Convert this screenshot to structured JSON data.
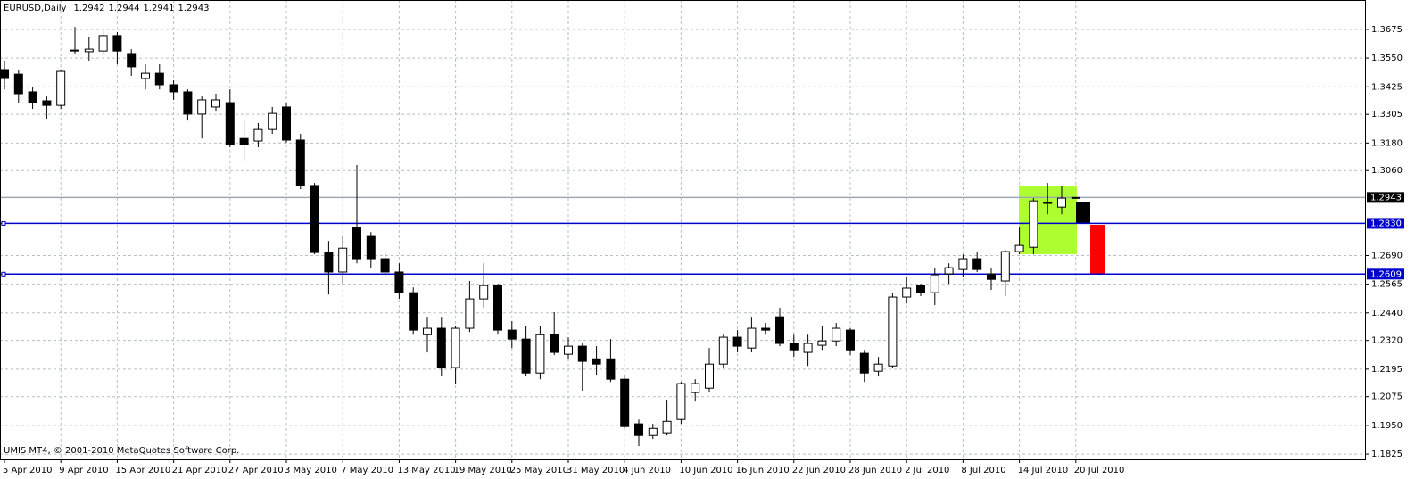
{
  "chart_data": {
    "type": "candlestick",
    "title": "EURUSD,Daily",
    "watermark": "UMIS MT4, © 2001-2010 MetaQuotes Software Corp.",
    "categories": [
      "5 Apr 2010",
      null,
      null,
      null,
      "9 Apr 2010",
      null,
      null,
      null,
      "15 Apr 2010",
      null,
      null,
      null,
      "21 Apr 2010",
      null,
      null,
      null,
      "27 Apr 2010",
      null,
      null,
      null,
      "3 May 2010",
      null,
      null,
      null,
      "7 May 2010",
      null,
      null,
      null,
      "13 May 2010",
      null,
      null,
      null,
      "19 May 2010",
      null,
      null,
      null,
      "25 May 2010",
      null,
      null,
      null,
      "31 May 2010",
      null,
      null,
      null,
      "4 Jun 2010",
      null,
      null,
      null,
      "10 Jun 2010",
      null,
      null,
      null,
      "16 Jun 2010",
      null,
      null,
      null,
      "22 Jun 2010",
      null,
      null,
      null,
      "28 Jun 2010",
      null,
      null,
      null,
      "2 Jul 2010",
      null,
      null,
      null,
      "8 Jul 2010",
      null,
      null,
      null,
      "14 Jul 2010",
      null,
      null,
      null,
      "20 Jul 2010"
    ],
    "open": [
      1.35,
      1.348,
      1.3403,
      1.3364,
      1.3344,
      1.3581,
      1.3578,
      1.3581,
      1.3648,
      1.357,
      1.3461,
      1.3484,
      1.3434,
      1.3403,
      1.3306,
      1.3337,
      1.3356,
      1.32,
      1.3189,
      1.3239,
      1.3337,
      1.3193,
      1.2995,
      1.2703,
      1.2618,
      1.2812,
      1.2773,
      1.2676,
      1.2618,
      1.2528,
      1.2345,
      1.2373,
      1.2202,
      1.2373,
      1.2501,
      1.2559,
      1.2365,
      1.2326,
      1.2178,
      1.2345,
      1.226,
      1.2295,
      1.224,
      1.224,
      1.2151,
      1.1957,
      1.1906,
      1.1918,
      1.1976,
      1.2093,
      1.2112,
      1.2217,
      1.2334,
      1.2287,
      1.2373,
      1.2423,
      1.2307,
      1.2268,
      1.2299,
      1.2318,
      1.2365,
      1.2264,
      1.2186,
      1.2209,
      1.2509,
      1.2559,
      1.2528,
      1.261,
      1.2629,
      1.2676,
      1.261,
      1.2579,
      1.2707,
      1.2726,
      1.2921,
      1.2901,
      1.2942
    ],
    "high": [
      1.3539,
      1.35,
      1.3422,
      1.3383,
      1.35,
      1.3686,
      1.364,
      1.3667,
      1.3663,
      1.3589,
      1.3523,
      1.3523,
      1.3453,
      1.3414,
      1.3383,
      1.3395,
      1.3414,
      1.3278,
      1.3267,
      1.3337,
      1.3356,
      1.322,
      1.3006,
      1.2753,
      1.2773,
      1.3084,
      1.2792,
      1.2707,
      1.2656,
      1.2551,
      1.2423,
      1.2423,
      1.2384,
      1.2579,
      1.2656,
      1.2567,
      1.2404,
      1.2384,
      1.2384,
      1.2443,
      1.2334,
      1.2307,
      1.2295,
      1.2326,
      1.2171,
      1.1976,
      1.1957,
      1.2062,
      1.2139,
      1.2151,
      1.2287,
      1.2345,
      1.2365,
      1.2423,
      1.2396,
      1.2462,
      1.2345,
      1.2345,
      1.2384,
      1.2396,
      1.2373,
      1.2279,
      1.2248,
      1.2528,
      1.2598,
      1.2567,
      1.2637,
      1.2656,
      1.2695,
      1.2707,
      1.2637,
      1.2715,
      1.2812,
      1.294,
      1.3006,
      1.2995,
      1.2944
    ],
    "low": [
      1.3414,
      1.3356,
      1.3329,
      1.3286,
      1.3329,
      1.357,
      1.3539,
      1.357,
      1.3523,
      1.3473,
      1.3414,
      1.3414,
      1.3368,
      1.3278,
      1.32,
      1.3317,
      1.3162,
      1.3103,
      1.3162,
      1.322,
      1.3181,
      1.2979,
      1.2695,
      1.252,
      1.2567,
      1.2656,
      1.2637,
      1.2598,
      1.2501,
      1.2345,
      1.2268,
      1.2163,
      1.2132,
      1.2357,
      1.2462,
      1.2345,
      1.2287,
      1.2163,
      1.2151,
      1.2256,
      1.224,
      1.2101,
      1.2171,
      1.2139,
      1.1937,
      1.186,
      1.1891,
      1.1906,
      1.1957,
      1.2054,
      1.2093,
      1.2202,
      1.2268,
      1.2268,
      1.2345,
      1.2295,
      1.2248,
      1.2209,
      1.2279,
      1.2295,
      1.2256,
      1.2139,
      1.2163,
      1.2202,
      1.2481,
      1.2513,
      1.2474,
      1.2567,
      1.2598,
      1.2618,
      1.254,
      1.2513,
      1.2695,
      1.2695,
      1.287,
      1.287,
      1.2941
    ],
    "close": [
      1.3461,
      1.3395,
      1.3356,
      1.3344,
      1.3492,
      1.3585,
      1.3589,
      1.3648,
      1.3581,
      1.3512,
      1.3484,
      1.3434,
      1.3403,
      1.3306,
      1.3368,
      1.3368,
      1.3173,
      1.3173,
      1.3239,
      1.3309,
      1.3193,
      1.2995,
      1.2703,
      1.2618,
      1.2722,
      1.2676,
      1.2676,
      1.2618,
      1.2528,
      1.2365,
      1.2373,
      1.2202,
      1.2373,
      1.2501,
      1.2559,
      1.2365,
      1.2326,
      1.2178,
      1.2345,
      1.2268,
      1.2295,
      1.2229,
      1.2217,
      1.2151,
      1.1945,
      1.1906,
      1.1937,
      1.1968,
      1.2132,
      1.2132,
      1.2217,
      1.2334,
      1.2295,
      1.2373,
      1.2365,
      1.2307,
      1.2279,
      1.2307,
      1.2318,
      1.2373,
      1.2279,
      1.2178,
      1.2217,
      1.2509,
      1.2548,
      1.2528,
      1.2606,
      1.2637,
      1.2676,
      1.2629,
      1.2586,
      1.2707,
      1.2734,
      1.2928,
      1.2917,
      1.294,
      1.2943
    ],
    "up_color": "#ffffff",
    "down_color": "#000000",
    "ylim": [
      1.1802,
      1.3803
    ],
    "yticks": [
      1.3675,
      {
        "value": 1.355,
        "label": "1.3550"
      },
      1.3425,
      1.3305,
      {
        "value": 1.318,
        "label": "1.3180"
      },
      {
        "value": 1.306,
        "label": "1.3060"
      },
      {
        "value": 1.269,
        "label": "1.2690"
      },
      1.2565,
      {
        "value": 1.244,
        "label": "1.2440"
      },
      {
        "value": 1.232,
        "label": "1.2320"
      },
      1.2195,
      1.2075,
      {
        "value": 1.195,
        "label": "1.1950"
      },
      1.1825
    ],
    "hlines": [
      {
        "value": 1.2943,
        "label": "1.2943",
        "color": "#a0a8b0",
        "label_color": "#000000"
      },
      {
        "value": 1.283,
        "label": "1.2830",
        "color": "#0000cc",
        "label_color": "#0000cc"
      },
      {
        "value": 1.2609,
        "label": "1.2609",
        "color": "#0000cc",
        "label_color": "#0000cc"
      }
    ],
    "grid": true
  }
}
